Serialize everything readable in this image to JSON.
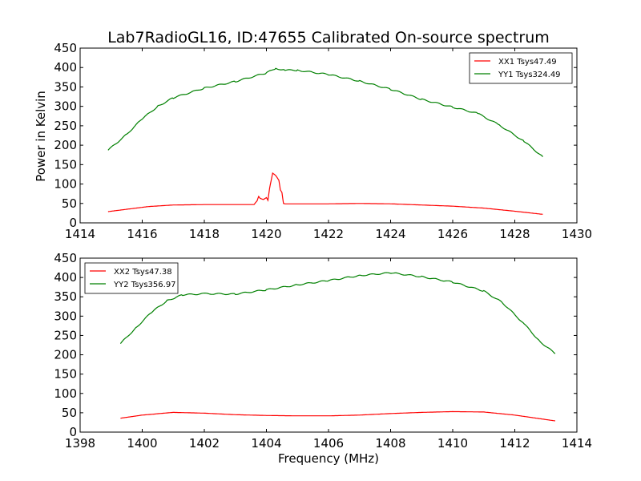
{
  "figure": {
    "title": "Lab7RadioGL16, ID:47655 Calibrated On-source spectrum",
    "ylabel": "Power in Kelvin",
    "xlabel": "Frequency (MHz)"
  },
  "chart_data": [
    {
      "type": "line",
      "xlim": [
        1414,
        1430
      ],
      "ylim": [
        0,
        450
      ],
      "xticks": [
        1414,
        1416,
        1418,
        1420,
        1422,
        1424,
        1426,
        1428,
        1430
      ],
      "yticks": [
        0,
        50,
        100,
        150,
        200,
        250,
        300,
        350,
        400,
        450
      ],
      "legend_position": "top-right",
      "grid": false,
      "series": [
        {
          "name": "XX1 Tsys47.49",
          "color": "#ff0000",
          "points": [
            [
              1414.9,
              29
            ],
            [
              1415.5,
              35
            ],
            [
              1416.2,
              42
            ],
            [
              1417,
              46
            ],
            [
              1418,
              47
            ],
            [
              1419,
              47
            ],
            [
              1419.6,
              47
            ],
            [
              1419.7,
              57
            ],
            [
              1419.75,
              68
            ],
            [
              1419.8,
              63
            ],
            [
              1419.9,
              60
            ],
            [
              1420.0,
              65
            ],
            [
              1420.05,
              58
            ],
            [
              1420.1,
              88
            ],
            [
              1420.2,
              128
            ],
            [
              1420.3,
              122
            ],
            [
              1420.4,
              110
            ],
            [
              1420.45,
              85
            ],
            [
              1420.5,
              78
            ],
            [
              1420.55,
              50
            ],
            [
              1420.6,
              49
            ],
            [
              1422,
              49
            ],
            [
              1423,
              50
            ],
            [
              1424,
              49
            ],
            [
              1425,
              46
            ],
            [
              1426,
              43
            ],
            [
              1427,
              38
            ],
            [
              1428,
              30
            ],
            [
              1428.9,
              22
            ]
          ]
        },
        {
          "name": "YY1 Tsys324.49",
          "color": "#008000",
          "points": [
            [
              1414.9,
              187
            ],
            [
              1415.5,
              228
            ],
            [
              1416,
              268
            ],
            [
              1416.5,
              300
            ],
            [
              1417,
              322
            ],
            [
              1418,
              347
            ],
            [
              1419,
              364
            ],
            [
              1420,
              386
            ],
            [
              1420.3,
              398
            ],
            [
              1420.6,
              393
            ],
            [
              1421,
              393
            ],
            [
              1422,
              382
            ],
            [
              1423,
              365
            ],
            [
              1424,
              344
            ],
            [
              1425,
              318
            ],
            [
              1426,
              298
            ],
            [
              1426.8,
              282
            ],
            [
              1427.5,
              252
            ],
            [
              1428.3,
              210
            ],
            [
              1428.9,
              170
            ]
          ]
        }
      ]
    },
    {
      "type": "line",
      "xlim": [
        1398,
        1414
      ],
      "ylim": [
        0,
        450
      ],
      "xticks": [
        1398,
        1400,
        1402,
        1404,
        1406,
        1408,
        1410,
        1412,
        1414
      ],
      "yticks": [
        0,
        50,
        100,
        150,
        200,
        250,
        300,
        350,
        400,
        450
      ],
      "legend_position": "top-left",
      "grid": false,
      "series": [
        {
          "name": "XX2 Tsys47.38",
          "color": "#ff0000",
          "points": [
            [
              1399.3,
              36
            ],
            [
              1400,
              44
            ],
            [
              1401,
              51
            ],
            [
              1402,
              49
            ],
            [
              1403,
              45
            ],
            [
              1404,
              43
            ],
            [
              1405,
              42
            ],
            [
              1406,
              42
            ],
            [
              1407,
              44
            ],
            [
              1408,
              48
            ],
            [
              1409,
              51
            ],
            [
              1410,
              53
            ],
            [
              1411,
              52
            ],
            [
              1412,
              44
            ],
            [
              1413.3,
              29
            ]
          ]
        },
        {
          "name": "YY2 Tsys356.97",
          "color": "#008000",
          "points": [
            [
              1399.3,
              229
            ],
            [
              1399.8,
              270
            ],
            [
              1400.3,
              310
            ],
            [
              1400.8,
              340
            ],
            [
              1401.3,
              355
            ],
            [
              1402,
              358
            ],
            [
              1403,
              357
            ],
            [
              1404,
              368
            ],
            [
              1405,
              381
            ],
            [
              1406,
              392
            ],
            [
              1407,
              405
            ],
            [
              1408,
              412
            ],
            [
              1409,
              402
            ],
            [
              1410,
              388
            ],
            [
              1411,
              365
            ],
            [
              1411.6,
              335
            ],
            [
              1412.3,
              280
            ],
            [
              1412.8,
              235
            ],
            [
              1413.3,
              203
            ]
          ]
        }
      ]
    }
  ]
}
